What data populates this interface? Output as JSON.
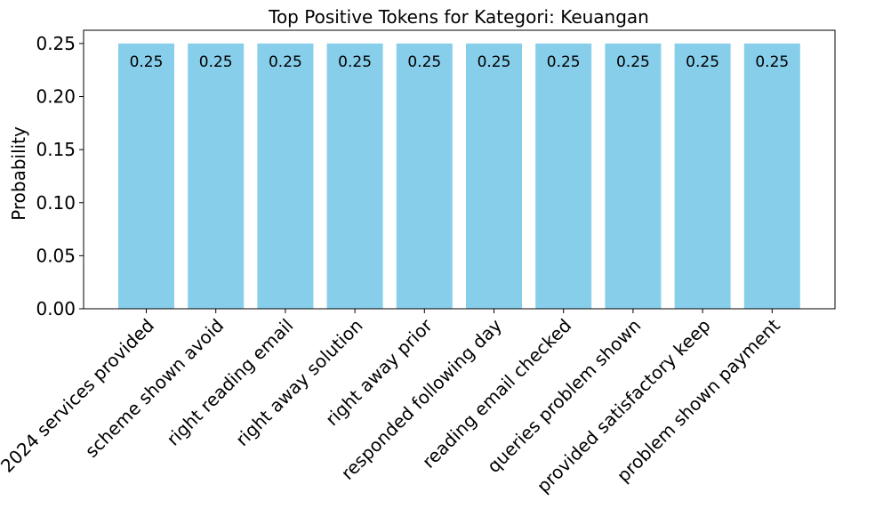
{
  "chart_data": {
    "type": "bar",
    "title": "Top Positive Tokens for Kategori: Keuangan",
    "xlabel": "",
    "ylabel": "Probability",
    "categories": [
      "2024 services provided",
      "scheme shown avoid",
      "right reading email",
      "right away solution",
      "right away prior",
      "responded following day",
      "reading email checked",
      "queries problem shown",
      "provided satisfactory keep",
      "problem shown payment"
    ],
    "values": [
      0.25,
      0.25,
      0.25,
      0.25,
      0.25,
      0.25,
      0.25,
      0.25,
      0.25,
      0.25
    ],
    "data_labels": [
      "0.25",
      "0.25",
      "0.25",
      "0.25",
      "0.25",
      "0.25",
      "0.25",
      "0.25",
      "0.25",
      "0.25"
    ],
    "yticks": [
      0.0,
      0.05,
      0.1,
      0.15,
      0.2,
      0.25
    ],
    "ytick_labels": [
      "0.00",
      "0.05",
      "0.10",
      "0.15",
      "0.20",
      "0.25"
    ],
    "ylim": [
      0,
      0.2625
    ],
    "grid": false,
    "bar_color": "#87CEEB"
  }
}
